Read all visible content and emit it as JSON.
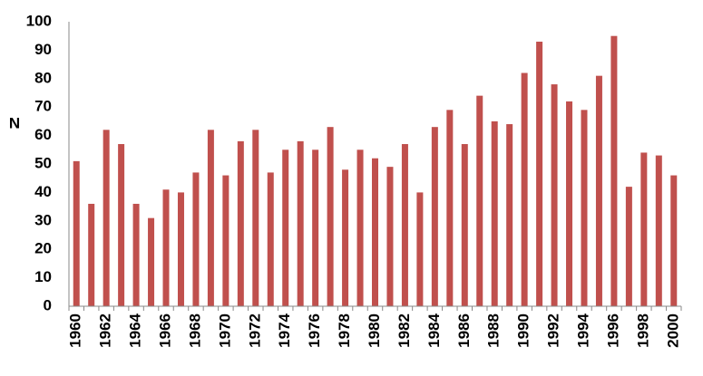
{
  "chart_data": {
    "type": "bar",
    "title": "",
    "xlabel": "",
    "ylabel": "N",
    "ylim": [
      0,
      100
    ],
    "y_ticks": [
      "0",
      "10",
      "20",
      "30",
      "40",
      "50",
      "60",
      "70",
      "80",
      "90",
      "100"
    ],
    "bar_color": "#c0504d",
    "grid": false,
    "legend": "none",
    "categories": [
      "1960",
      "1961",
      "1962",
      "1963",
      "1964",
      "1965",
      "1966",
      "1967",
      "1968",
      "1969",
      "1970",
      "1971",
      "1972",
      "1973",
      "1974",
      "1975",
      "1976",
      "1977",
      "1978",
      "1979",
      "1980",
      "1981",
      "1982",
      "1983",
      "1984",
      "1985",
      "1986",
      "1987",
      "1988",
      "1989",
      "1990",
      "1991",
      "1992",
      "1993",
      "1994",
      "1995",
      "1996",
      "1997",
      "1998",
      "1999",
      "2000"
    ],
    "x_tick_labels": [
      "1960",
      "1962",
      "1964",
      "1966",
      "1968",
      "1970",
      "1972",
      "1974",
      "1976",
      "1978",
      "1980",
      "1982",
      "1984",
      "1986",
      "1988",
      "1990",
      "1992",
      "1994",
      "1996",
      "1998",
      "2000"
    ],
    "values": [
      51,
      36,
      62,
      57,
      36,
      31,
      41,
      40,
      47,
      62,
      46,
      58,
      62,
      47,
      55,
      58,
      55,
      63,
      48,
      55,
      52,
      49,
      57,
      40,
      63,
      69,
      57,
      74,
      65,
      64,
      82,
      93,
      78,
      72,
      69,
      81,
      95,
      42,
      54,
      53,
      46
    ]
  }
}
